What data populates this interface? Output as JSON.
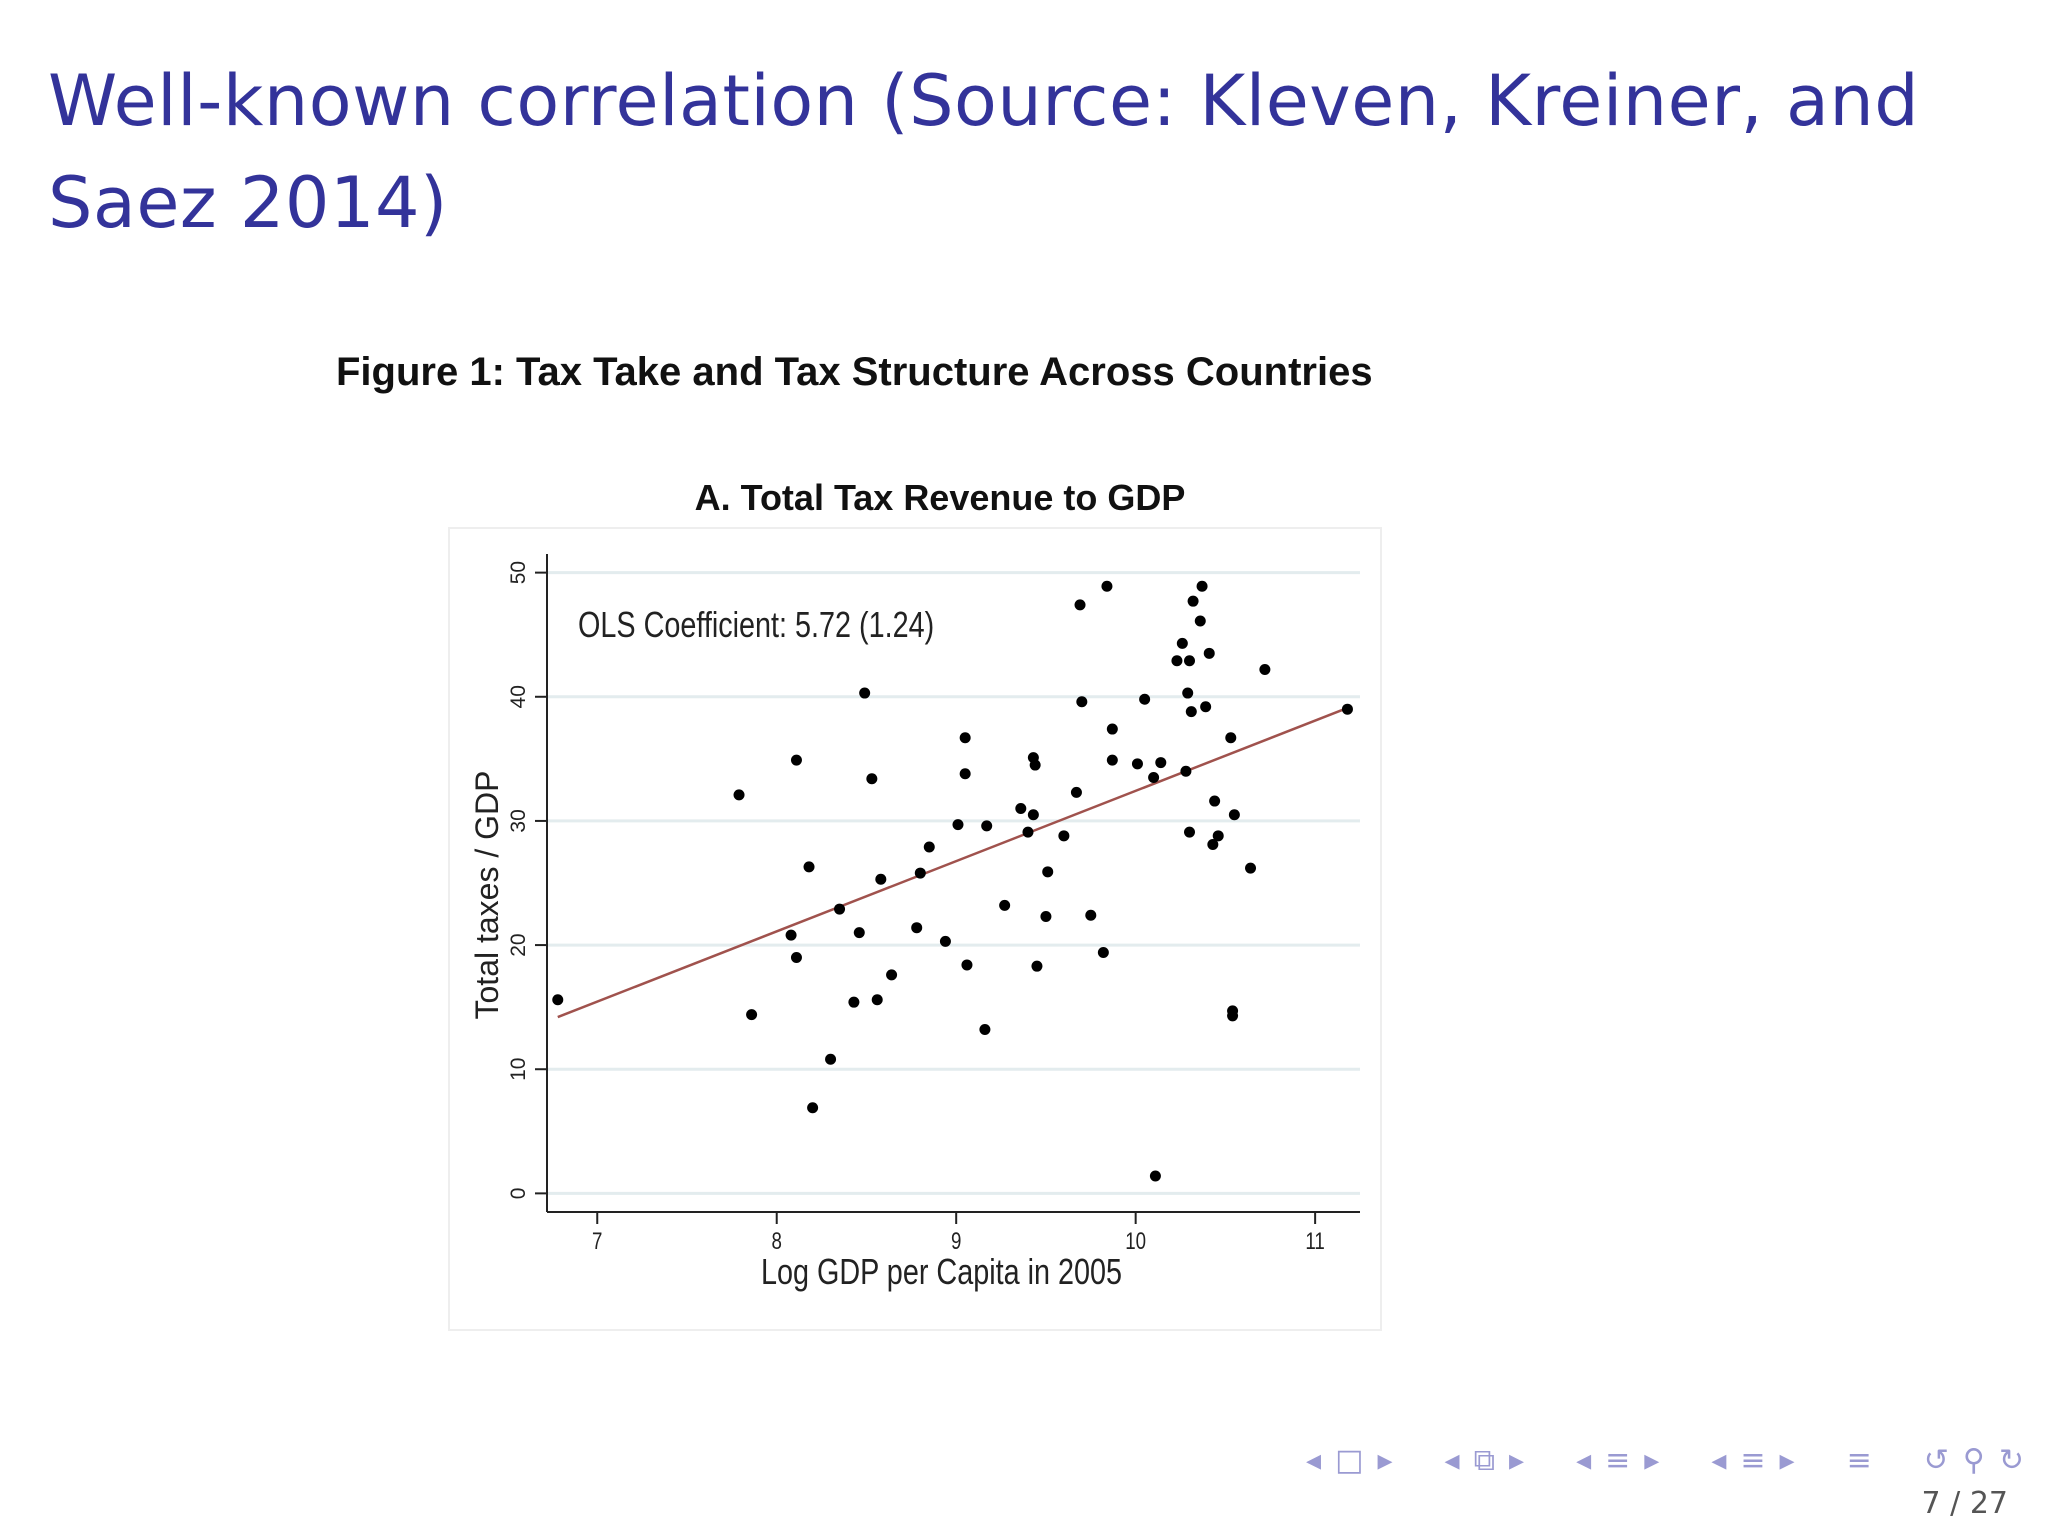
{
  "slide": {
    "title": "Well-known correlation (Source: Kleven, Kreiner, and Saez 2014)",
    "figure_title": "Figure 1: Tax Take and Tax Structure Across Countries",
    "panel_title": "A. Total Tax Revenue to GDP",
    "page_number": "7 / 27"
  },
  "nav": {
    "icons": [
      "arrow-left",
      "frame",
      "arrow-right",
      "arrow-left",
      "subsection",
      "arrow-right",
      "arrow-left",
      "section",
      "arrow-right",
      "arrow-left",
      "subsubsection",
      "arrow-right",
      "outline",
      "undo",
      "search",
      "redo"
    ]
  },
  "chart_data": {
    "type": "scatter",
    "xlabel": "Log GDP per Capita in 2005",
    "ylabel": "Total taxes / GDP",
    "xlim": [
      6.72,
      11.25
    ],
    "ylim": [
      -1.5,
      51.5
    ],
    "xticks": [
      7,
      8,
      9,
      10,
      11
    ],
    "yticks": [
      0,
      10,
      20,
      30,
      40,
      50
    ],
    "grid": "horizontal",
    "annotation": "OLS Coefficient: 5.72 (1.24)",
    "fit_line": {
      "x": [
        6.78,
        11.18
      ],
      "y": [
        14.2,
        39.1
      ],
      "color": "#a0524d"
    },
    "points": [
      [
        6.78,
        15.6
      ],
      [
        7.79,
        32.1
      ],
      [
        7.86,
        14.4
      ],
      [
        8.08,
        20.8
      ],
      [
        8.11,
        19.0
      ],
      [
        8.11,
        34.9
      ],
      [
        8.18,
        26.3
      ],
      [
        8.2,
        6.9
      ],
      [
        8.3,
        10.8
      ],
      [
        8.35,
        22.9
      ],
      [
        8.43,
        15.4
      ],
      [
        8.46,
        21.0
      ],
      [
        8.49,
        40.3
      ],
      [
        8.53,
        33.4
      ],
      [
        8.56,
        15.6
      ],
      [
        8.58,
        25.3
      ],
      [
        8.64,
        17.6
      ],
      [
        8.78,
        21.4
      ],
      [
        8.8,
        25.8
      ],
      [
        8.85,
        27.9
      ],
      [
        8.94,
        20.3
      ],
      [
        9.01,
        29.7
      ],
      [
        9.05,
        36.7
      ],
      [
        9.05,
        33.8
      ],
      [
        9.06,
        18.4
      ],
      [
        9.16,
        13.2
      ],
      [
        9.17,
        29.6
      ],
      [
        9.27,
        23.2
      ],
      [
        9.36,
        31.0
      ],
      [
        9.4,
        29.1
      ],
      [
        9.43,
        30.5
      ],
      [
        9.43,
        35.1
      ],
      [
        9.44,
        34.5
      ],
      [
        9.45,
        18.3
      ],
      [
        9.5,
        22.3
      ],
      [
        9.51,
        25.9
      ],
      [
        9.6,
        28.8
      ],
      [
        9.67,
        32.3
      ],
      [
        9.69,
        47.4
      ],
      [
        9.7,
        39.6
      ],
      [
        9.75,
        22.4
      ],
      [
        9.82,
        19.4
      ],
      [
        9.84,
        48.9
      ],
      [
        9.87,
        37.4
      ],
      [
        9.87,
        34.9
      ],
      [
        10.01,
        34.6
      ],
      [
        10.05,
        39.8
      ],
      [
        10.1,
        33.5
      ],
      [
        10.11,
        1.4
      ],
      [
        10.14,
        34.7
      ],
      [
        10.23,
        42.9
      ],
      [
        10.26,
        44.3
      ],
      [
        10.28,
        34.0
      ],
      [
        10.29,
        40.3
      ],
      [
        10.3,
        42.9
      ],
      [
        10.3,
        29.1
      ],
      [
        10.31,
        38.8
      ],
      [
        10.32,
        47.7
      ],
      [
        10.36,
        46.1
      ],
      [
        10.37,
        48.9
      ],
      [
        10.39,
        39.2
      ],
      [
        10.41,
        43.5
      ],
      [
        10.43,
        28.1
      ],
      [
        10.44,
        31.6
      ],
      [
        10.46,
        28.8
      ],
      [
        10.53,
        36.7
      ],
      [
        10.54,
        14.3
      ],
      [
        10.54,
        14.7
      ],
      [
        10.55,
        30.5
      ],
      [
        10.64,
        26.2
      ],
      [
        10.72,
        42.2
      ],
      [
        11.18,
        39.0
      ]
    ]
  }
}
